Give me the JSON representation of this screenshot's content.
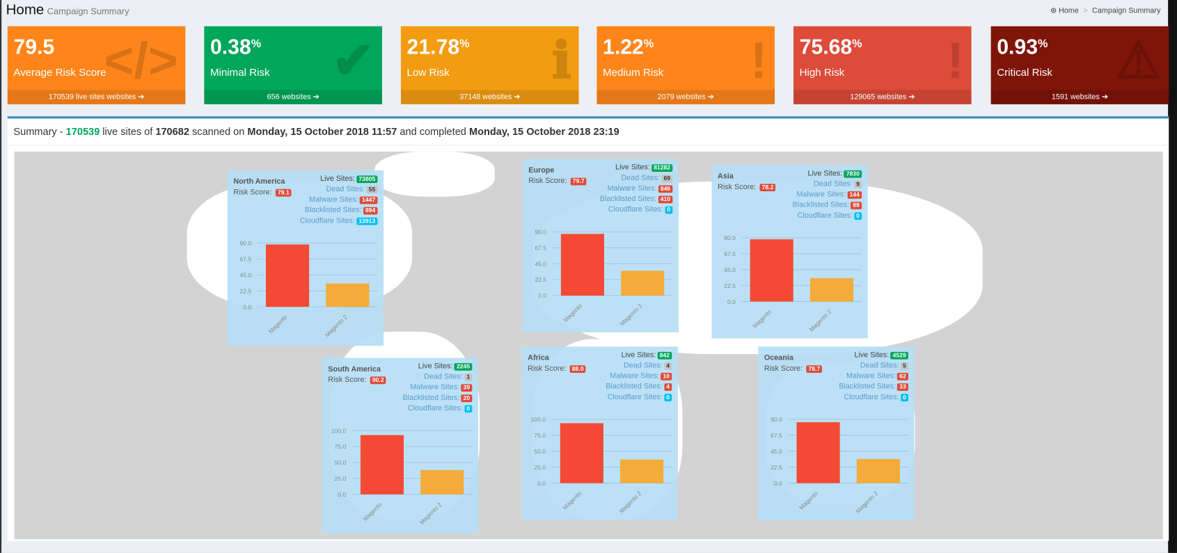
{
  "header": {
    "title": "Home",
    "subtitle": "Campaign Summary",
    "breadcrumb": [
      "Home",
      "Campaign Summary"
    ],
    "breadcrumb_icon": "dashboard-icon"
  },
  "cards": [
    {
      "value": "79.5",
      "suffix": "",
      "label": "Average Risk Score",
      "footer": "170539 live sites websites",
      "color": "#ff851b",
      "icon": "code-icon",
      "glyph": "</>"
    },
    {
      "value": "0.38",
      "suffix": "%",
      "label": "Minimal Risk",
      "footer": "656 websites",
      "color": "#00a65a",
      "icon": "check-icon",
      "glyph": "✔"
    },
    {
      "value": "21.78",
      "suffix": "%",
      "label": "Low Risk",
      "footer": "37148 websites",
      "color": "#f39c12",
      "icon": "info-icon",
      "glyph": "ℹ"
    },
    {
      "value": "1.22",
      "suffix": "%",
      "label": "Medium Risk",
      "footer": "2079 websites",
      "color": "#ff851b",
      "icon": "exclamation-icon",
      "glyph": "!"
    },
    {
      "value": "75.68",
      "suffix": "%",
      "label": "High Risk",
      "footer": "129065 websites",
      "color": "#dd4b39",
      "icon": "exclamation-circle-icon",
      "glyph": "!"
    },
    {
      "value": "0.93",
      "suffix": "%",
      "label": "Critical Risk",
      "footer": "1591 websites",
      "color": "#7f1409",
      "icon": "warning-icon",
      "glyph": "⚠"
    }
  ],
  "summary": {
    "prefix": "Summary - ",
    "live": "170539",
    "t1": " live sites of ",
    "total": "170682",
    "t2": " scanned on ",
    "scanned": "Monday, 15 October 2018 11:57",
    "t3": " and completed ",
    "completed": "Monday, 15 October 2018 23:19"
  },
  "colors": {
    "green": "#00a65a",
    "gray": "#c5c5c5",
    "red": "#dd4b39",
    "cyan": "#00c0ef",
    "magento": "#f44a35",
    "magento2": "#f4ab3a"
  },
  "regions": [
    {
      "name": "North America",
      "risk_score": "79.1",
      "stats": [
        {
          "label": "Live Sites:",
          "value": "73805",
          "type": "green"
        },
        {
          "label": "Dead Sites:",
          "value": "55",
          "type": "gray"
        },
        {
          "label": "Malware Sites:",
          "value": "1447",
          "type": "red"
        },
        {
          "label": "Blacklisted Sites:",
          "value": "894",
          "type": "red"
        },
        {
          "label": "Cloudflare Sites:",
          "value": "13913",
          "type": "cyan"
        }
      ],
      "chart": {
        "categories": [
          "Magento",
          "Magento 2"
        ],
        "values": [
          88,
          33
        ],
        "ymax": 90,
        "ticks": [
          "0.0",
          "22.5",
          "45.0",
          "67.5",
          "90.0"
        ]
      }
    },
    {
      "name": "Europe",
      "risk_score": "79.7",
      "stats": [
        {
          "label": "Live Sites:",
          "value": "81282",
          "type": "green"
        },
        {
          "label": "Dead Sites:",
          "value": "69",
          "type": "gray"
        },
        {
          "label": "Malware Sites:",
          "value": "846",
          "type": "red"
        },
        {
          "label": "Blacklisted Sites:",
          "value": "410",
          "type": "red"
        },
        {
          "label": "Cloudflare Sites:",
          "value": "0",
          "type": "cyan"
        }
      ],
      "chart": {
        "categories": [
          "Magento",
          "Magento 2"
        ],
        "values": [
          87,
          35
        ],
        "ymax": 90,
        "ticks": [
          "0.0",
          "22.5",
          "45.0",
          "67.5",
          "90.0"
        ]
      }
    },
    {
      "name": "Asia",
      "risk_score": "78.2",
      "stats": [
        {
          "label": "Live Sites:",
          "value": "7830",
          "type": "green"
        },
        {
          "label": "Dead Sites:",
          "value": "9",
          "type": "gray"
        },
        {
          "label": "Malware Sites:",
          "value": "144",
          "type": "red"
        },
        {
          "label": "Blacklisted Sites:",
          "value": "88",
          "type": "red"
        },
        {
          "label": "Cloudflare Sites:",
          "value": "0",
          "type": "cyan"
        }
      ],
      "chart": {
        "categories": [
          "Magento",
          "Magento 2"
        ],
        "values": [
          88,
          33
        ],
        "ymax": 90,
        "ticks": [
          "0.0",
          "22.5",
          "45.0",
          "67.5",
          "90.0"
        ]
      }
    },
    {
      "name": "South America",
      "risk_score": "90.2",
      "stats": [
        {
          "label": "Live Sites:",
          "value": "2245",
          "type": "green"
        },
        {
          "label": "Dead Sites:",
          "value": "1",
          "type": "gray"
        },
        {
          "label": "Malware Sites:",
          "value": "39",
          "type": "red"
        },
        {
          "label": "Blacklisted Sites:",
          "value": "20",
          "type": "red"
        },
        {
          "label": "Cloudflare Sites:",
          "value": "0",
          "type": "cyan"
        }
      ],
      "chart": {
        "categories": [
          "Magento",
          "Magento 2"
        ],
        "values": [
          93,
          38
        ],
        "ymax": 100,
        "ticks": [
          "0.0",
          "25.0",
          "50.0",
          "75.0",
          "100.0"
        ]
      }
    },
    {
      "name": "Africa",
      "risk_score": "88.0",
      "stats": [
        {
          "label": "Live Sites:",
          "value": "842",
          "type": "green"
        },
        {
          "label": "Dead Sites:",
          "value": "4",
          "type": "gray"
        },
        {
          "label": "Malware Sites:",
          "value": "10",
          "type": "red"
        },
        {
          "label": "Blacklisted Sites:",
          "value": "4",
          "type": "red"
        },
        {
          "label": "Cloudflare Sites:",
          "value": "0",
          "type": "cyan"
        }
      ],
      "chart": {
        "categories": [
          "Magento",
          "Magento 2"
        ],
        "values": [
          94,
          37
        ],
        "ymax": 100,
        "ticks": [
          "0.0",
          "25.0",
          "50.0",
          "75.0",
          "100.0"
        ]
      }
    },
    {
      "name": "Oceania",
      "risk_score": "78.7",
      "stats": [
        {
          "label": "Live Sites:",
          "value": "4529",
          "type": "green"
        },
        {
          "label": "Dead Sites:",
          "value": "5",
          "type": "gray"
        },
        {
          "label": "Malware Sites:",
          "value": "62",
          "type": "red"
        },
        {
          "label": "Blacklisted Sites:",
          "value": "33",
          "type": "red"
        },
        {
          "label": "Cloudflare Sites:",
          "value": "0",
          "type": "cyan"
        }
      ],
      "chart": {
        "categories": [
          "Magento",
          "Magento 2"
        ],
        "values": [
          86,
          34
        ],
        "ymax": 90,
        "ticks": [
          "0.0",
          "22.5",
          "45.0",
          "67.5",
          "90.0"
        ]
      }
    }
  ]
}
